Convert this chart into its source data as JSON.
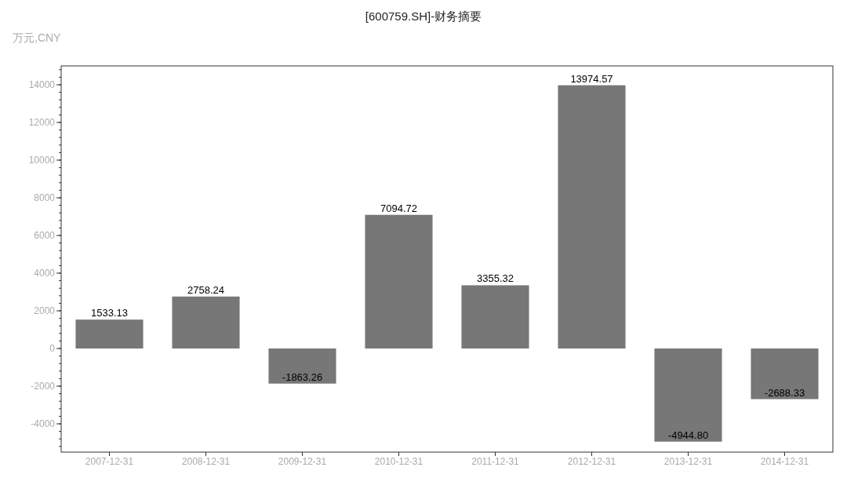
{
  "chart_data": {
    "type": "bar",
    "title": "[600759.SH]-财务摘要",
    "ylabel": "万元,CNY",
    "categories": [
      "2007-12-31",
      "2008-12-31",
      "2009-12-31",
      "2010-12-31",
      "2011-12-31",
      "2012-12-31",
      "2013-12-31",
      "2014-12-31"
    ],
    "values": [
      1533.13,
      2758.24,
      -1863.26,
      7094.72,
      3355.32,
      13974.57,
      -4944.8,
      -2688.33
    ],
    "value_labels": [
      "1533.13",
      "2758.24",
      "-1863.26",
      "7094.72",
      "3355.32",
      "13974.57",
      "-4944.80",
      "-2688.33"
    ],
    "color": "#777777",
    "ylim": [
      -5500,
      15000
    ],
    "yticks": [
      -4000,
      -2000,
      0,
      2000,
      4000,
      6000,
      8000,
      10000,
      12000,
      14000
    ],
    "grid": false
  }
}
